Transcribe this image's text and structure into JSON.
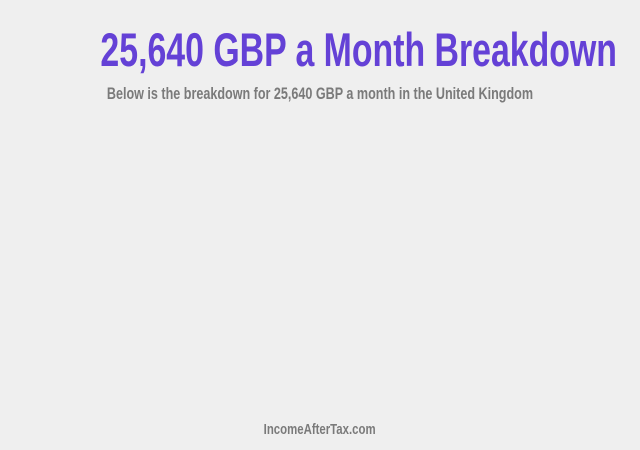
{
  "header": {
    "title": "25,640 GBP a Month Breakdown",
    "subtitle": "Below is the breakdown for 25,640 GBP a month in the United Kingdom"
  },
  "footer": {
    "site_name": "IncomeAfterTax.com"
  },
  "colors": {
    "title": "#6441d6",
    "text": "#7a7a7a",
    "background": "#efefef"
  }
}
